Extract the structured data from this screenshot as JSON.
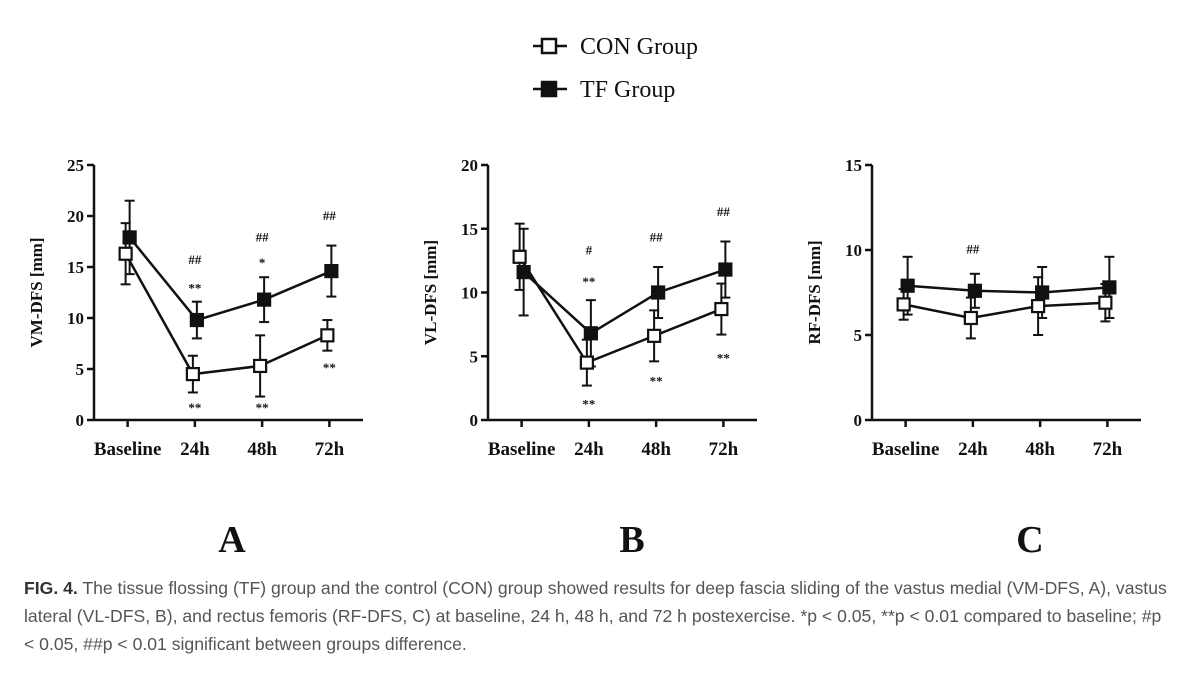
{
  "legend": {
    "con_label": "CON Group",
    "tf_label": "TF Group"
  },
  "colors": {
    "ink": "#111111",
    "con_fill": "#ffffff",
    "tf_fill": "#111111",
    "caption": "#555555"
  },
  "chart_data": [
    {
      "type": "line",
      "panel": "A",
      "ylabel": "VM-DFS [mm]",
      "categories": [
        "Baseline",
        "24h",
        "48h",
        "72h"
      ],
      "ylim": [
        0,
        25
      ],
      "yticks": [
        0,
        5,
        10,
        15,
        20,
        25
      ],
      "series": [
        {
          "name": "CON Group",
          "marker": "open-square",
          "values": [
            16.3,
            4.5,
            5.3,
            8.3
          ],
          "err": [
            3.0,
            1.8,
            3.0,
            1.5
          ]
        },
        {
          "name": "TF Group",
          "marker": "filled-square",
          "values": [
            17.9,
            9.8,
            11.8,
            14.6
          ],
          "err": [
            3.6,
            1.8,
            2.2,
            2.5
          ]
        }
      ],
      "annotations": [
        {
          "category": "24h",
          "y": 15.3,
          "text": "##"
        },
        {
          "category": "24h",
          "y": 12.5,
          "text": "**"
        },
        {
          "category": "24h",
          "y": 0.8,
          "text": "**"
        },
        {
          "category": "48h",
          "y": 17.5,
          "text": "##"
        },
        {
          "category": "48h",
          "y": 15.0,
          "text": "*"
        },
        {
          "category": "48h",
          "y": 0.8,
          "text": "**"
        },
        {
          "category": "72h",
          "y": 19.6,
          "text": "##"
        },
        {
          "category": "72h",
          "y": 4.7,
          "text": "**"
        }
      ]
    },
    {
      "type": "line",
      "panel": "B",
      "ylabel": "VL-DFS [mm]",
      "categories": [
        "Baseline",
        "24h",
        "48h",
        "72h"
      ],
      "ylim": [
        0,
        20
      ],
      "yticks": [
        0,
        5,
        10,
        15,
        20
      ],
      "series": [
        {
          "name": "CON Group",
          "marker": "open-square",
          "values": [
            12.8,
            4.5,
            6.6,
            8.7
          ],
          "err": [
            2.6,
            1.8,
            2.0,
            2.0
          ]
        },
        {
          "name": "TF Group",
          "marker": "filled-square",
          "values": [
            11.6,
            6.8,
            10.0,
            11.8
          ],
          "err": [
            3.4,
            2.6,
            2.0,
            2.2
          ]
        }
      ],
      "annotations": [
        {
          "category": "24h",
          "y": 13.0,
          "text": "#"
        },
        {
          "category": "24h",
          "y": 10.5,
          "text": "**"
        },
        {
          "category": "24h",
          "y": 0.9,
          "text": "**"
        },
        {
          "category": "48h",
          "y": 14.0,
          "text": "##"
        },
        {
          "category": "48h",
          "y": 2.7,
          "text": "**"
        },
        {
          "category": "72h",
          "y": 16.0,
          "text": "##"
        },
        {
          "category": "72h",
          "y": 4.5,
          "text": "**"
        }
      ]
    },
    {
      "type": "line",
      "panel": "C",
      "ylabel": "RF-DFS [mm]",
      "categories": [
        "Baseline",
        "24h",
        "48h",
        "72h"
      ],
      "ylim": [
        0,
        15
      ],
      "yticks": [
        0,
        5,
        10,
        15
      ],
      "series": [
        {
          "name": "CON Group",
          "marker": "open-square",
          "values": [
            6.8,
            6.0,
            6.7,
            6.9
          ],
          "err": [
            0.9,
            1.2,
            1.7,
            1.1
          ]
        },
        {
          "name": "TF Group",
          "marker": "filled-square",
          "values": [
            7.9,
            7.6,
            7.5,
            7.8
          ],
          "err": [
            1.7,
            1.0,
            1.5,
            1.8
          ]
        }
      ],
      "annotations": [
        {
          "category": "24h",
          "y": 9.8,
          "text": "##"
        }
      ]
    }
  ],
  "caption": {
    "label": "FIG. 4.",
    "text": " The tissue flossing (TF) group and the control (CON) group showed results for deep fascia sliding of the vastus medial (VM-DFS, A), vastus lateral (VL-DFS, B), and rectus femoris (RF-DFS, C) at baseline, 24 h, 48 h, and 72 h postexercise. *p < 0.05, **p < 0.01 compared to baseline; #p < 0.05, ##p < 0.01 significant between groups difference."
  }
}
